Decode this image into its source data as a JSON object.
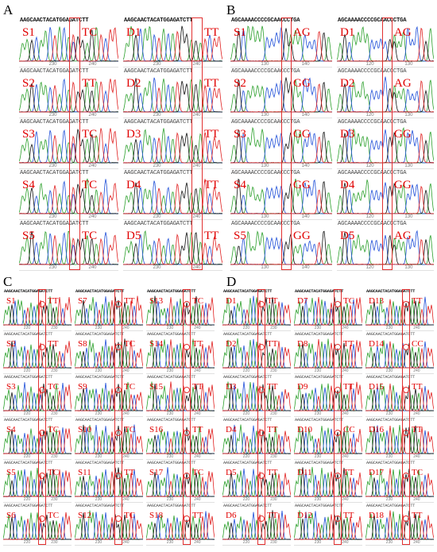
{
  "panels": [
    {
      "letter": "A",
      "sequence": "AAGCAACTACATGGAGATCTT",
      "columns": [
        {
          "tick_labels": [
            "230",
            "240"
          ],
          "samples": [
            {
              "id": "S1",
              "genotype": "TC"
            },
            {
              "id": "S2",
              "genotype": "TT"
            },
            {
              "id": "S3",
              "genotype": "TC"
            },
            {
              "id": "S4",
              "genotype": "TC"
            },
            {
              "id": "S5",
              "genotype": "TC"
            }
          ]
        },
        {
          "tick_labels": [
            "230",
            "240"
          ],
          "samples": [
            {
              "id": "D1",
              "genotype": "TT"
            },
            {
              "id": "D2",
              "genotype": "TT"
            },
            {
              "id": "D3",
              "genotype": "TT"
            },
            {
              "id": "D4",
              "genotype": "TT"
            },
            {
              "id": "D5",
              "genotype": "TT"
            }
          ]
        }
      ]
    },
    {
      "letter": "B",
      "sequence": "AGCAAAACCCCGCAACCCTGA",
      "columns": [
        {
          "tick_labels": [
            "130",
            "140"
          ],
          "samples": [
            {
              "id": "S1",
              "genotype": "AG"
            },
            {
              "id": "S2",
              "genotype": "GG"
            },
            {
              "id": "S3",
              "genotype": "GG"
            },
            {
              "id": "S4",
              "genotype": "GG"
            },
            {
              "id": "S5",
              "genotype": "GG"
            }
          ]
        },
        {
          "tick_labels": [
            "120",
            "130"
          ],
          "samples": [
            {
              "id": "D1",
              "genotype": "AG"
            },
            {
              "id": "D2",
              "genotype": "AG"
            },
            {
              "id": "D3",
              "genotype": "GG"
            },
            {
              "id": "D4",
              "genotype": "GG"
            },
            {
              "id": "D5",
              "genotype": "AG"
            }
          ]
        }
      ]
    },
    {
      "letter": "C",
      "sequence": "AAGCAACTACATGGAGATCTT",
      "columns": [
        {
          "tick_labels": [
            "220",
            "230"
          ],
          "samples": [
            {
              "id": "S1",
              "genotype": "TT"
            },
            {
              "id": "S2",
              "genotype": "TT"
            },
            {
              "id": "S3",
              "genotype": "TC"
            },
            {
              "id": "S4",
              "genotype": "TC"
            },
            {
              "id": "S5",
              "genotype": "TC"
            },
            {
              "id": "S6",
              "genotype": "TC"
            }
          ]
        },
        {
          "tick_labels": [
            "230",
            "240"
          ],
          "samples": [
            {
              "id": "S7",
              "genotype": "TT"
            },
            {
              "id": "S8",
              "genotype": "TC"
            },
            {
              "id": "S9",
              "genotype": "TC"
            },
            {
              "id": "S10",
              "genotype": "TC"
            },
            {
              "id": "S11",
              "genotype": "TT"
            },
            {
              "id": "S12",
              "genotype": "TC"
            }
          ]
        },
        {
          "tick_labels": [
            "230",
            "240"
          ],
          "samples": [
            {
              "id": "S13",
              "genotype": "TC"
            },
            {
              "id": "S14",
              "genotype": "TT"
            },
            {
              "id": "S15",
              "genotype": "TT"
            },
            {
              "id": "S16",
              "genotype": "TT"
            },
            {
              "id": "S17",
              "genotype": "TC"
            },
            {
              "id": "S18",
              "genotype": "TT"
            }
          ]
        }
      ]
    },
    {
      "letter": "D",
      "sequence": "AAGCAACTACATGGAGATCTT",
      "columns": [
        {
          "tick_labels": [
            "220",
            "230"
          ],
          "samples": [
            {
              "id": "D1",
              "genotype": "TT"
            },
            {
              "id": "D2",
              "genotype": "TT"
            },
            {
              "id": "D3",
              "genotype": "TT"
            },
            {
              "id": "D4",
              "genotype": "TT"
            },
            {
              "id": "D5",
              "genotype": "TT"
            },
            {
              "id": "D6",
              "genotype": "TT"
            }
          ]
        },
        {
          "tick_labels": [
            "230",
            "240"
          ],
          "samples": [
            {
              "id": "D7",
              "genotype": "TC"
            },
            {
              "id": "D8",
              "genotype": "TT"
            },
            {
              "id": "D9",
              "genotype": "TT"
            },
            {
              "id": "D10",
              "genotype": "CC"
            },
            {
              "id": "D11",
              "genotype": "TT"
            },
            {
              "id": "D12",
              "genotype": "TT"
            }
          ]
        },
        {
          "tick_labels": [
            "230",
            "240"
          ],
          "samples": [
            {
              "id": "D13",
              "genotype": "TT"
            },
            {
              "id": "D14",
              "genotype": "CC"
            },
            {
              "id": "D15",
              "genotype": "TT"
            },
            {
              "id": "D16",
              "genotype": "TT"
            },
            {
              "id": "D17",
              "genotype": "TC"
            },
            {
              "id": "D18",
              "genotype": "TT"
            }
          ]
        }
      ]
    }
  ],
  "colors": {
    "A": "#2ca02c",
    "C": "#1f4fd8",
    "G": "#111111",
    "T": "#e02020",
    "label": "#e00000",
    "box": "#e23030"
  }
}
